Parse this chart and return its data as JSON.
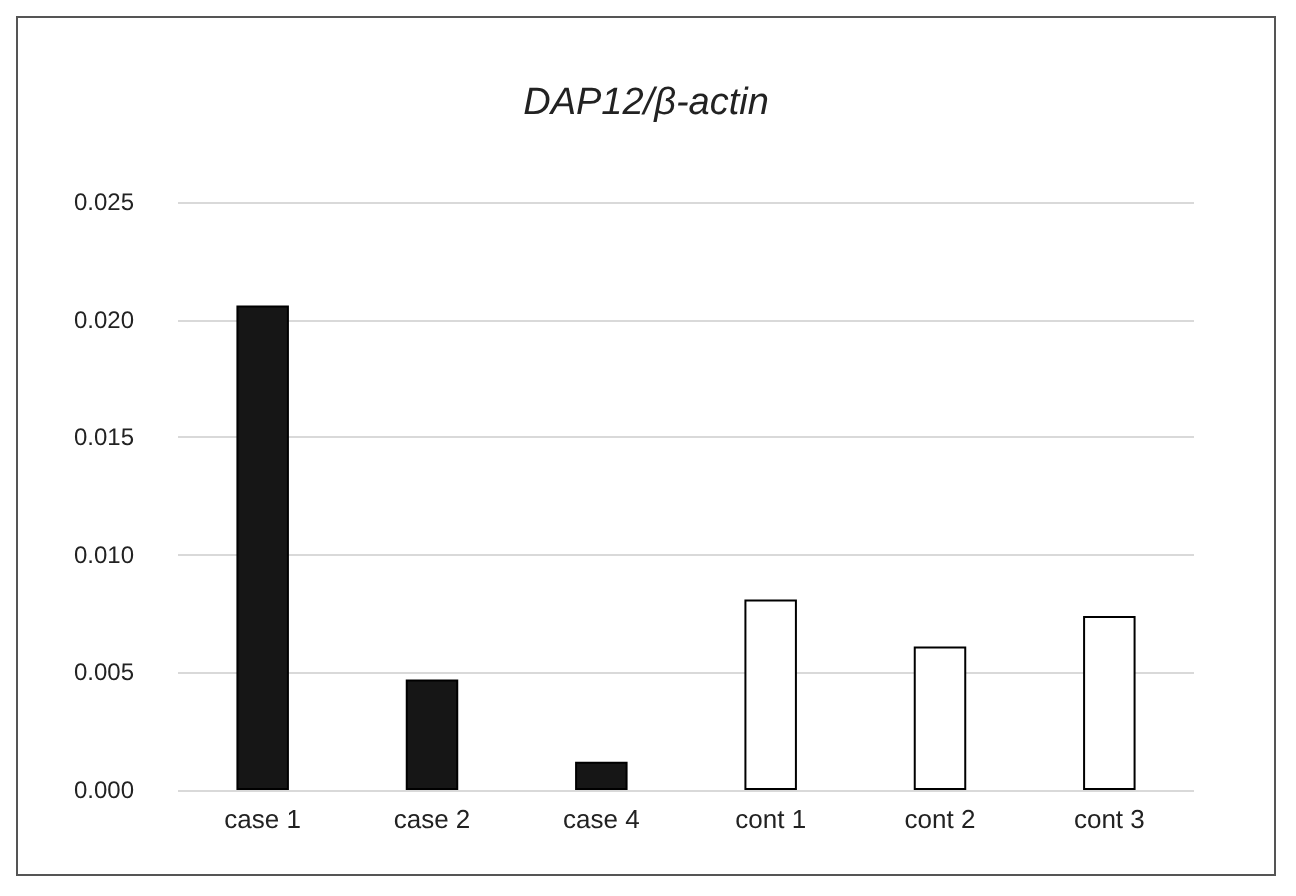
{
  "chart_data": {
    "type": "bar",
    "title": "DAP12/β-actin",
    "categories": [
      "case 1",
      "case 2",
      "case 4",
      "cont 1",
      "cont 2",
      "cont 3"
    ],
    "values": [
      0.0206,
      0.0047,
      0.0012,
      0.0081,
      0.0061,
      0.0074
    ],
    "colors": [
      "#161616",
      "#161616",
      "#161616",
      "#ffffff",
      "#ffffff",
      "#ffffff"
    ],
    "ylim": [
      0,
      0.025
    ],
    "yticks": [
      {
        "value": 0,
        "label": "0.000"
      },
      0.005,
      {
        "value": 0.01,
        "label": "0.010"
      },
      0.015,
      {
        "value": 0.02,
        "label": "0.020"
      },
      0.025
    ],
    "grid": "y"
  }
}
